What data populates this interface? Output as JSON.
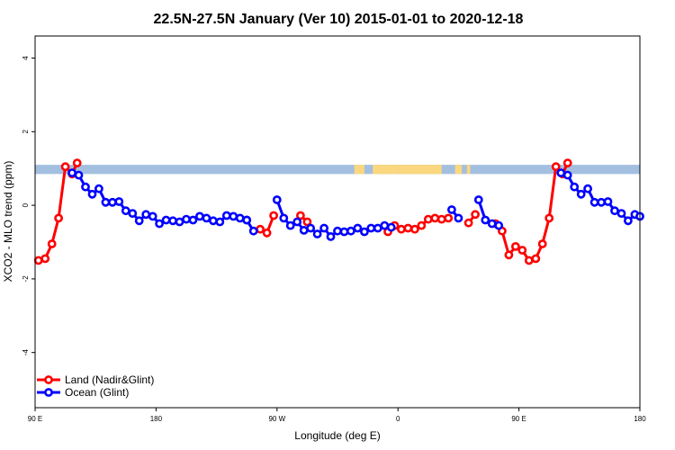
{
  "chart_data": {
    "type": "line",
    "title": "22.5N-27.5N January (Ver 10)   2015-01-01 to 2020-12-18",
    "xlabel": "Longitude (deg E)",
    "ylabel": "XCO2 - MLO trend (ppm)",
    "xlim": [
      90,
      450
    ],
    "ylim": [
      -5.5,
      4.6
    ],
    "x_ticks": [
      {
        "value": 90,
        "label": "90 E"
      },
      {
        "value": 162,
        "label": "180"
      },
      {
        "value": 234,
        "label": "90 W"
      },
      {
        "value": 306,
        "label": "0"
      },
      {
        "value": 378,
        "label": "90 E"
      },
      {
        "value": 450,
        "label": "180"
      }
    ],
    "y_ticks": [
      {
        "value": 4,
        "label": "4"
      },
      {
        "value": 2,
        "label": "2"
      },
      {
        "value": 0,
        "label": "0"
      },
      {
        "value": -2,
        "label": "-2"
      },
      {
        "value": -4,
        "label": "-4"
      }
    ],
    "grid": false,
    "legend_position": "bottom-left",
    "map_band": {
      "y_range": [
        0.85,
        1.1
      ],
      "ocean_color": "#a3bfe0",
      "land_color": "#fbd77f",
      "land_x_ranges": [
        [
          280,
          286
        ],
        [
          291,
          306
        ],
        [
          306,
          332
        ],
        [
          340,
          344
        ],
        [
          347,
          349
        ]
      ]
    },
    "series": [
      {
        "name": "Land (Nadir&Glint)",
        "color": "#ff0000",
        "segments": [
          [
            [
              92,
              -1.5
            ],
            [
              96,
              -1.45
            ],
            [
              100,
              -1.05
            ],
            [
              104,
              -0.35
            ],
            [
              108,
              1.05
            ],
            [
              112,
              0.85
            ],
            [
              115,
              1.15
            ]
          ],
          [
            [
              224,
              -0.65
            ],
            [
              228,
              -0.75
            ],
            [
              232,
              -0.28
            ]
          ],
          [
            [
              248,
              -0.28
            ],
            [
              252,
              -0.45
            ]
          ],
          [
            [
              300,
              -0.72
            ],
            [
              304,
              -0.55
            ],
            [
              308,
              -0.65
            ],
            [
              312,
              -0.62
            ],
            [
              316,
              -0.65
            ],
            [
              320,
              -0.55
            ],
            [
              324,
              -0.38
            ],
            [
              328,
              -0.35
            ],
            [
              332,
              -0.38
            ],
            [
              336,
              -0.35
            ]
          ],
          [
            [
              348,
              -0.48
            ],
            [
              352,
              -0.25
            ]
          ],
          [
            [
              364,
              -0.5
            ],
            [
              368,
              -0.7
            ],
            [
              372,
              -1.35
            ],
            [
              376,
              -1.12
            ],
            [
              380,
              -1.22
            ],
            [
              384,
              -1.5
            ],
            [
              388,
              -1.45
            ],
            [
              392,
              -1.05
            ],
            [
              396,
              -0.35
            ],
            [
              400,
              1.05
            ],
            [
              404,
              0.85
            ],
            [
              407,
              1.15
            ]
          ]
        ]
      },
      {
        "name": "Ocean (Glint)",
        "color": "#0000ff",
        "segments": [
          [
            [
              112,
              0.88
            ],
            [
              116,
              0.82
            ],
            [
              120,
              0.5
            ],
            [
              124,
              0.3
            ],
            [
              128,
              0.45
            ],
            [
              132,
              0.08
            ],
            [
              136,
              0.08
            ],
            [
              140,
              0.1
            ],
            [
              144,
              -0.15
            ],
            [
              148,
              -0.22
            ],
            [
              152,
              -0.42
            ],
            [
              156,
              -0.25
            ],
            [
              160,
              -0.3
            ],
            [
              164,
              -0.5
            ],
            [
              168,
              -0.4
            ],
            [
              172,
              -0.42
            ],
            [
              176,
              -0.45
            ],
            [
              180,
              -0.38
            ],
            [
              184,
              -0.4
            ],
            [
              188,
              -0.3
            ],
            [
              192,
              -0.35
            ],
            [
              196,
              -0.42
            ],
            [
              200,
              -0.45
            ],
            [
              204,
              -0.28
            ],
            [
              208,
              -0.3
            ],
            [
              212,
              -0.35
            ],
            [
              216,
              -0.4
            ]
          ],
          [
            [
              216,
              -0.4
            ],
            [
              220,
              -0.7
            ]
          ],
          [
            [
              234,
              0.15
            ],
            [
              238,
              -0.35
            ],
            [
              242,
              -0.55
            ],
            [
              246,
              -0.45
            ],
            [
              250,
              -0.68
            ],
            [
              254,
              -0.62
            ],
            [
              258,
              -0.78
            ],
            [
              262,
              -0.62
            ],
            [
              266,
              -0.85
            ],
            [
              270,
              -0.7
            ],
            [
              274,
              -0.72
            ],
            [
              278,
              -0.7
            ],
            [
              282,
              -0.62
            ],
            [
              286,
              -0.72
            ],
            [
              290,
              -0.62
            ],
            [
              294,
              -0.62
            ],
            [
              298,
              -0.55
            ],
            [
              302,
              -0.6
            ]
          ],
          [
            [
              338,
              -0.12
            ],
            [
              342,
              -0.35
            ]
          ],
          [
            [
              354,
              0.15
            ],
            [
              358,
              -0.4
            ],
            [
              362,
              -0.5
            ],
            [
              366,
              -0.55
            ]
          ],
          [
            [
              403,
              0.88
            ],
            [
              407,
              0.82
            ],
            [
              411,
              0.5
            ],
            [
              415,
              0.3
            ],
            [
              419,
              0.45
            ],
            [
              423,
              0.08
            ],
            [
              427,
              0.08
            ],
            [
              431,
              0.1
            ],
            [
              435,
              -0.15
            ],
            [
              439,
              -0.22
            ],
            [
              443,
              -0.42
            ],
            [
              447,
              -0.25
            ],
            [
              450,
              -0.3
            ]
          ]
        ]
      }
    ]
  }
}
